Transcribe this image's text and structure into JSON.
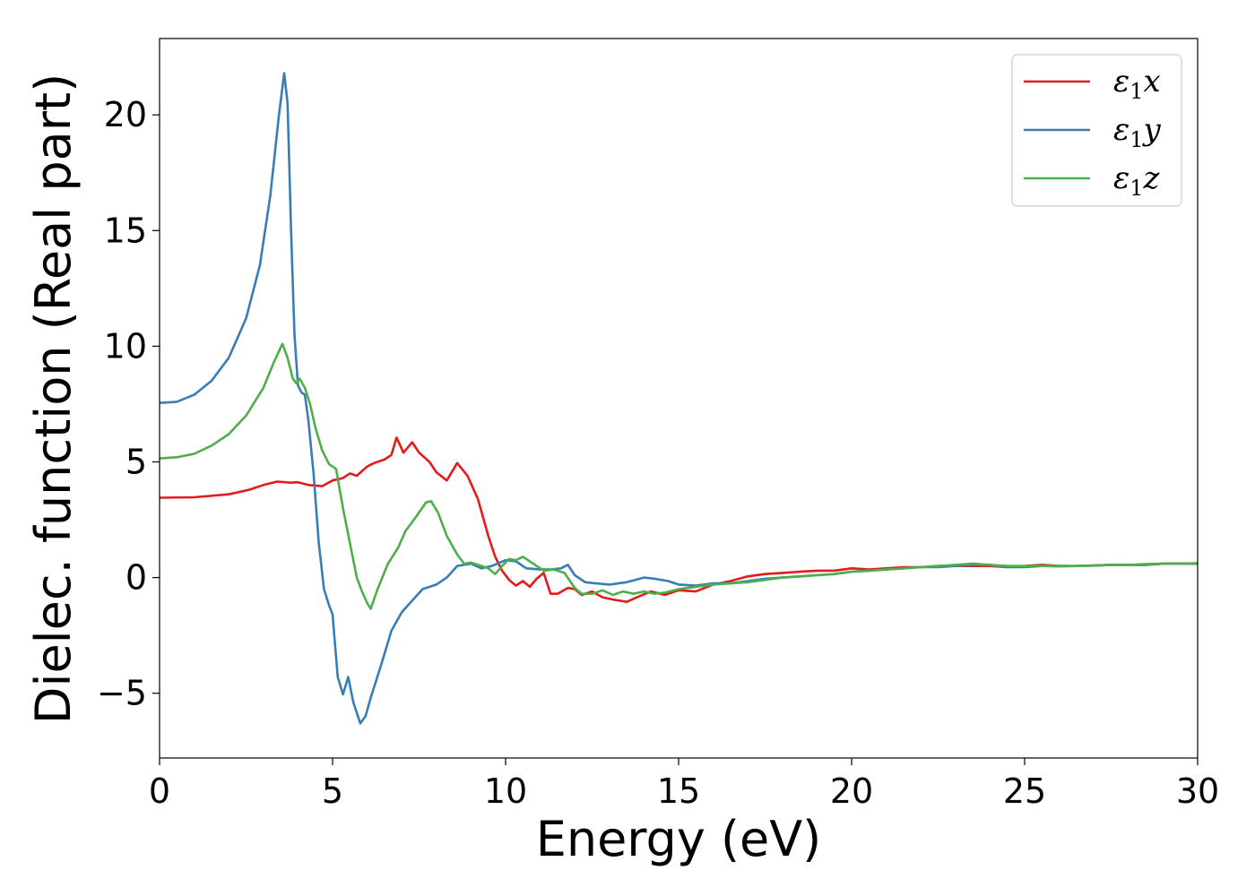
{
  "chart_data": {
    "type": "line",
    "title": "",
    "xlabel": "Energy (eV)",
    "ylabel": "Dielec. function (Real part)",
    "xlim": [
      0,
      30
    ],
    "ylim": [
      -7.8,
      23.3
    ],
    "xticks": [
      0,
      5,
      10,
      15,
      20,
      25,
      30
    ],
    "xtick_labels": [
      "0",
      "5",
      "10",
      "15",
      "20",
      "25",
      "30"
    ],
    "yticks": [
      -5,
      0,
      5,
      10,
      15,
      20
    ],
    "ytick_labels": [
      "−5",
      "0",
      "5",
      "10",
      "15",
      "20"
    ],
    "grid": false,
    "legend_position": "top-right",
    "series": [
      {
        "name": "ε1x",
        "label_main": "ε",
        "label_sub": "1",
        "label_tail": "x",
        "color": "#e41a1c",
        "points": [
          [
            0,
            3.45
          ],
          [
            1,
            3.47
          ],
          [
            2,
            3.6
          ],
          [
            2.6,
            3.8
          ],
          [
            3,
            4.0
          ],
          [
            3.4,
            4.15
          ],
          [
            3.8,
            4.1
          ],
          [
            4,
            4.12
          ],
          [
            4.3,
            4.0
          ],
          [
            4.7,
            3.95
          ],
          [
            5,
            4.2
          ],
          [
            5.3,
            4.3
          ],
          [
            5.5,
            4.5
          ],
          [
            5.7,
            4.4
          ],
          [
            6,
            4.8
          ],
          [
            6.2,
            4.95
          ],
          [
            6.5,
            5.1
          ],
          [
            6.7,
            5.3
          ],
          [
            6.85,
            6.05
          ],
          [
            7.05,
            5.4
          ],
          [
            7.3,
            5.85
          ],
          [
            7.5,
            5.4
          ],
          [
            7.8,
            5.0
          ],
          [
            8,
            4.55
          ],
          [
            8.3,
            4.2
          ],
          [
            8.6,
            4.95
          ],
          [
            8.9,
            4.4
          ],
          [
            9.2,
            3.4
          ],
          [
            9.5,
            1.8
          ],
          [
            9.7,
            0.9
          ],
          [
            9.9,
            0.3
          ],
          [
            10.1,
            -0.1
          ],
          [
            10.3,
            -0.35
          ],
          [
            10.5,
            -0.15
          ],
          [
            10.7,
            -0.4
          ],
          [
            10.9,
            -0.05
          ],
          [
            11.1,
            0.2
          ],
          [
            11.3,
            -0.7
          ],
          [
            11.5,
            -0.7
          ],
          [
            11.8,
            -0.45
          ],
          [
            12,
            -0.5
          ],
          [
            12.2,
            -0.75
          ],
          [
            12.5,
            -0.6
          ],
          [
            12.8,
            -0.85
          ],
          [
            13.1,
            -0.95
          ],
          [
            13.5,
            -1.05
          ],
          [
            13.8,
            -0.85
          ],
          [
            14.2,
            -0.6
          ],
          [
            14.6,
            -0.75
          ],
          [
            15,
            -0.55
          ],
          [
            15.5,
            -0.6
          ],
          [
            16,
            -0.3
          ],
          [
            16.5,
            -0.15
          ],
          [
            17,
            0.05
          ],
          [
            17.5,
            0.15
          ],
          [
            18,
            0.2
          ],
          [
            18.5,
            0.25
          ],
          [
            19,
            0.3
          ],
          [
            19.5,
            0.3
          ],
          [
            20,
            0.4
          ],
          [
            20.5,
            0.35
          ],
          [
            21,
            0.4
          ],
          [
            21.5,
            0.45
          ],
          [
            22,
            0.45
          ],
          [
            22.5,
            0.5
          ],
          [
            23,
            0.5
          ],
          [
            23.5,
            0.5
          ],
          [
            24,
            0.5
          ],
          [
            24.5,
            0.45
          ],
          [
            25,
            0.5
          ],
          [
            25.5,
            0.55
          ],
          [
            26,
            0.5
          ],
          [
            26.5,
            0.5
          ],
          [
            27,
            0.52
          ],
          [
            27.5,
            0.55
          ],
          [
            28,
            0.55
          ],
          [
            28.5,
            0.55
          ],
          [
            29,
            0.6
          ],
          [
            29.5,
            0.6
          ],
          [
            30,
            0.6
          ]
        ]
      },
      {
        "name": "ε1y",
        "label_main": "ε",
        "label_sub": "1",
        "label_tail": "y",
        "color": "#377eb8",
        "points": [
          [
            0,
            7.55
          ],
          [
            0.5,
            7.6
          ],
          [
            1,
            7.9
          ],
          [
            1.5,
            8.5
          ],
          [
            2,
            9.5
          ],
          [
            2.5,
            11.2
          ],
          [
            2.9,
            13.5
          ],
          [
            3.2,
            16.5
          ],
          [
            3.45,
            20.0
          ],
          [
            3.6,
            21.8
          ],
          [
            3.7,
            20.5
          ],
          [
            3.8,
            15.0
          ],
          [
            3.9,
            10.5
          ],
          [
            4.0,
            8.3
          ],
          [
            4.1,
            8.0
          ],
          [
            4.2,
            7.9
          ],
          [
            4.3,
            6.8
          ],
          [
            4.45,
            4.5
          ],
          [
            4.6,
            1.5
          ],
          [
            4.75,
            -0.5
          ],
          [
            4.9,
            -1.2
          ],
          [
            5.0,
            -1.6
          ],
          [
            5.05,
            -2.5
          ],
          [
            5.15,
            -4.3
          ],
          [
            5.3,
            -5.05
          ],
          [
            5.45,
            -4.3
          ],
          [
            5.6,
            -5.4
          ],
          [
            5.8,
            -6.3
          ],
          [
            5.95,
            -6.0
          ],
          [
            6.1,
            -5.2
          ],
          [
            6.4,
            -3.8
          ],
          [
            6.7,
            -2.3
          ],
          [
            7,
            -1.5
          ],
          [
            7.3,
            -1.0
          ],
          [
            7.6,
            -0.5
          ],
          [
            8,
            -0.3
          ],
          [
            8.3,
            0.0
          ],
          [
            8.6,
            0.5
          ],
          [
            9,
            0.6
          ],
          [
            9.3,
            0.4
          ],
          [
            9.6,
            0.5
          ],
          [
            10,
            0.75
          ],
          [
            10.3,
            0.7
          ],
          [
            10.6,
            0.4
          ],
          [
            11,
            0.35
          ],
          [
            11.3,
            0.35
          ],
          [
            11.6,
            0.4
          ],
          [
            11.8,
            0.55
          ],
          [
            12,
            0.1
          ],
          [
            12.3,
            -0.2
          ],
          [
            12.6,
            -0.25
          ],
          [
            13,
            -0.3
          ],
          [
            13.5,
            -0.2
          ],
          [
            14,
            0.0
          ],
          [
            14.3,
            -0.05
          ],
          [
            14.7,
            -0.15
          ],
          [
            15,
            -0.3
          ],
          [
            15.5,
            -0.35
          ],
          [
            16,
            -0.25
          ],
          [
            16.5,
            -0.25
          ],
          [
            17,
            -0.15
          ],
          [
            17.5,
            -0.05
          ],
          [
            18,
            0.0
          ],
          [
            18.5,
            0.05
          ],
          [
            19,
            0.1
          ],
          [
            19.5,
            0.15
          ],
          [
            20,
            0.25
          ],
          [
            20.5,
            0.3
          ],
          [
            21,
            0.35
          ],
          [
            21.5,
            0.4
          ],
          [
            22,
            0.45
          ],
          [
            22.5,
            0.45
          ],
          [
            23,
            0.5
          ],
          [
            23.5,
            0.55
          ],
          [
            24,
            0.55
          ],
          [
            24.5,
            0.45
          ],
          [
            25,
            0.45
          ],
          [
            25.5,
            0.5
          ],
          [
            26,
            0.5
          ],
          [
            26.5,
            0.5
          ],
          [
            27,
            0.52
          ],
          [
            27.5,
            0.55
          ],
          [
            28,
            0.55
          ],
          [
            28.5,
            0.55
          ],
          [
            29,
            0.6
          ],
          [
            29.5,
            0.6
          ],
          [
            30,
            0.6
          ]
        ]
      },
      {
        "name": "ε1z",
        "label_main": "ε",
        "label_sub": "1",
        "label_tail": "z",
        "color": "#4daf4a",
        "points": [
          [
            0,
            5.15
          ],
          [
            0.5,
            5.2
          ],
          [
            1,
            5.35
          ],
          [
            1.5,
            5.7
          ],
          [
            2,
            6.2
          ],
          [
            2.5,
            7.0
          ],
          [
            3.0,
            8.2
          ],
          [
            3.3,
            9.3
          ],
          [
            3.55,
            10.1
          ],
          [
            3.7,
            9.5
          ],
          [
            3.85,
            8.6
          ],
          [
            3.95,
            8.4
          ],
          [
            4.05,
            8.6
          ],
          [
            4.2,
            8.2
          ],
          [
            4.35,
            7.5
          ],
          [
            4.5,
            6.5
          ],
          [
            4.7,
            5.5
          ],
          [
            4.9,
            4.9
          ],
          [
            5.1,
            4.7
          ],
          [
            5.3,
            3.0
          ],
          [
            5.5,
            1.5
          ],
          [
            5.7,
            0.0
          ],
          [
            5.85,
            -0.6
          ],
          [
            6.0,
            -1.1
          ],
          [
            6.1,
            -1.35
          ],
          [
            6.3,
            -0.5
          ],
          [
            6.6,
            0.6
          ],
          [
            6.9,
            1.3
          ],
          [
            7.1,
            2.0
          ],
          [
            7.4,
            2.6
          ],
          [
            7.7,
            3.25
          ],
          [
            7.85,
            3.3
          ],
          [
            8.05,
            2.8
          ],
          [
            8.3,
            1.8
          ],
          [
            8.6,
            1.0
          ],
          [
            8.8,
            0.6
          ],
          [
            9.0,
            0.65
          ],
          [
            9.2,
            0.55
          ],
          [
            9.5,
            0.4
          ],
          [
            9.7,
            0.15
          ],
          [
            9.9,
            0.5
          ],
          [
            10.1,
            0.8
          ],
          [
            10.3,
            0.75
          ],
          [
            10.5,
            0.9
          ],
          [
            10.8,
            0.6
          ],
          [
            11.1,
            0.3
          ],
          [
            11.4,
            0.35
          ],
          [
            11.7,
            0.2
          ],
          [
            12.0,
            -0.45
          ],
          [
            12.2,
            -0.7
          ],
          [
            12.5,
            -0.7
          ],
          [
            12.8,
            -0.55
          ],
          [
            13.1,
            -0.75
          ],
          [
            13.4,
            -0.6
          ],
          [
            13.7,
            -0.7
          ],
          [
            14,
            -0.6
          ],
          [
            14.3,
            -0.7
          ],
          [
            14.6,
            -0.65
          ],
          [
            15,
            -0.5
          ],
          [
            15.5,
            -0.4
          ],
          [
            16,
            -0.3
          ],
          [
            16.5,
            -0.25
          ],
          [
            17,
            -0.2
          ],
          [
            17.5,
            -0.1
          ],
          [
            18,
            0.0
          ],
          [
            18.5,
            0.05
          ],
          [
            19,
            0.1
          ],
          [
            19.5,
            0.15
          ],
          [
            20,
            0.25
          ],
          [
            20.5,
            0.3
          ],
          [
            21,
            0.35
          ],
          [
            21.5,
            0.4
          ],
          [
            22,
            0.45
          ],
          [
            22.5,
            0.5
          ],
          [
            23,
            0.55
          ],
          [
            23.5,
            0.6
          ],
          [
            24,
            0.55
          ],
          [
            24.5,
            0.5
          ],
          [
            25,
            0.5
          ],
          [
            25.5,
            0.5
          ],
          [
            26,
            0.48
          ],
          [
            26.5,
            0.5
          ],
          [
            27,
            0.52
          ],
          [
            27.5,
            0.55
          ],
          [
            28,
            0.55
          ],
          [
            28.5,
            0.58
          ],
          [
            29,
            0.6
          ],
          [
            29.5,
            0.6
          ],
          [
            30,
            0.62
          ]
        ]
      }
    ]
  }
}
